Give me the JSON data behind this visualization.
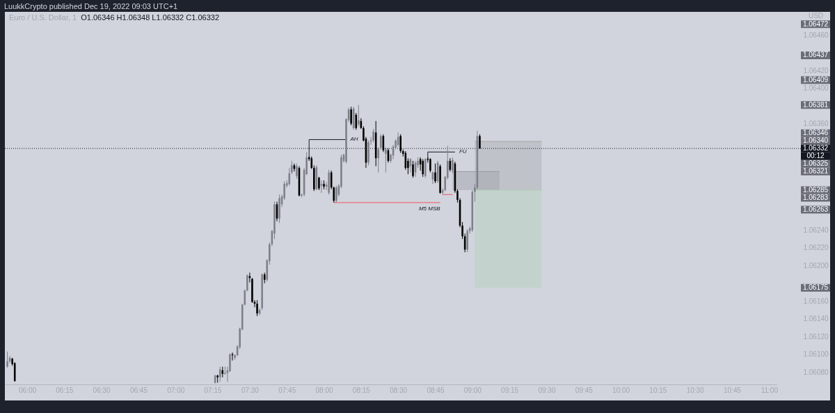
{
  "chart_data": {
    "type": "candlestick",
    "title": "Euro / U.S. Dollar, 1",
    "subtitle": "O1.06346 H1.06348 L1.06332 C1.06332",
    "ylabel": "USD",
    "xlim": [
      5.85,
      11.05
    ],
    "ylim": [
      1.06066,
      1.06486
    ],
    "xticks": [
      {
        "value": 6,
        "label": "06:00"
      },
      {
        "value": 6.25,
        "label": "06:15"
      },
      {
        "value": 6.5,
        "label": "06:30"
      },
      {
        "value": 6.75,
        "label": "06:45"
      },
      {
        "value": 7,
        "label": "07:00"
      },
      {
        "value": 7.25,
        "label": "07:15"
      },
      {
        "value": 7.5,
        "label": "07:30"
      },
      {
        "value": 7.75,
        "label": "07:45"
      },
      {
        "value": 8,
        "label": "08:00"
      },
      {
        "value": 8.25,
        "label": "08:15"
      },
      {
        "value": 8.5,
        "label": "08:30"
      },
      {
        "value": 8.75,
        "label": "08:45"
      },
      {
        "value": 9,
        "label": "09:00"
      },
      {
        "value": 9.25,
        "label": "09:15"
      },
      {
        "value": 9.5,
        "label": "09:30"
      },
      {
        "value": 9.75,
        "label": "09:45"
      },
      {
        "value": 10,
        "label": "10:00"
      },
      {
        "value": 10.25,
        "label": "10:15"
      },
      {
        "value": 10.5,
        "label": "10:30"
      },
      {
        "value": 10.75,
        "label": "10:45"
      },
      {
        "value": 11,
        "label": "11:00"
      }
    ],
    "yticks": [
      {
        "value": 1.0646,
        "label": "1.06460"
      },
      {
        "value": 1.0642,
        "label": "1.06420"
      },
      {
        "value": 1.064,
        "label": "1.06400"
      },
      {
        "value": 1.0636,
        "label": "1.06360"
      },
      {
        "value": 1.0624,
        "label": "1.06240"
      },
      {
        "value": 1.0622,
        "label": "1.06220"
      },
      {
        "value": 1.062,
        "label": "1.06200"
      },
      {
        "value": 1.0616,
        "label": "1.06160"
      },
      {
        "value": 1.0614,
        "label": "1.06140"
      },
      {
        "value": 1.0612,
        "label": "1.06120"
      },
      {
        "value": 1.061,
        "label": "1.06100"
      },
      {
        "value": 1.0608,
        "label": "1.06080"
      }
    ],
    "x": [
      5.8667,
      5.8833,
      5.9,
      5.9167,
      7.2667,
      7.2833,
      7.3,
      7.3167,
      7.3333,
      7.35,
      7.3667,
      7.3833,
      7.4,
      7.4167,
      7.4333,
      7.45,
      7.4667,
      7.4833,
      7.5,
      7.5167,
      7.5333,
      7.55,
      7.5667,
      7.5833,
      7.6,
      7.6167,
      7.6333,
      7.65,
      7.6667,
      7.6833,
      7.7,
      7.7167,
      7.7333,
      7.75,
      7.7667,
      7.7833,
      7.8,
      7.8167,
      7.8333,
      7.85,
      7.8667,
      7.8833,
      7.9,
      7.9167,
      7.9333,
      7.95,
      7.9667,
      7.9833,
      8,
      8.0167,
      8.0333,
      8.05,
      8.0667,
      8.0833,
      8.1,
      8.1167,
      8.1333,
      8.15,
      8.1667,
      8.1833,
      8.2,
      8.2167,
      8.2333,
      8.25,
      8.2667,
      8.2833,
      8.3,
      8.3167,
      8.3333,
      8.35,
      8.3667,
      8.3833,
      8.4,
      8.4167,
      8.4333,
      8.45,
      8.4667,
      8.4833,
      8.5,
      8.5167,
      8.5333,
      8.55,
      8.5667,
      8.5833,
      8.6,
      8.6167,
      8.6333,
      8.65,
      8.6667,
      8.6833,
      8.7,
      8.7167,
      8.7333,
      8.75,
      8.7667,
      8.7833,
      8.8,
      8.8167,
      8.8333,
      8.85,
      8.8667,
      8.8833,
      8.9,
      8.9167,
      8.9333,
      8.95,
      8.9667,
      8.9833,
      9,
      9.0167,
      9.0333,
      9.05
    ],
    "ohlc": [
      [
        1.06086,
        1.06103,
        1.06085,
        1.06092
      ],
      [
        1.06092,
        1.06098,
        1.0609,
        1.06096
      ],
      [
        1.06095,
        1.06096,
        1.06087,
        1.06089
      ],
      [
        1.0609,
        1.06091,
        1.06069,
        1.0607
      ],
      [
        1.06068,
        1.06077,
        1.06067,
        1.06076
      ],
      [
        1.06076,
        1.06077,
        1.06068,
        1.06074
      ],
      [
        1.06074,
        1.06086,
        1.06069,
        1.06083
      ],
      [
        1.06082,
        1.06086,
        1.06074,
        1.06078
      ],
      [
        1.06078,
        1.06086,
        1.06077,
        1.06079
      ],
      [
        1.06079,
        1.06086,
        1.06069,
        1.06082
      ],
      [
        1.06081,
        1.06101,
        1.0608,
        1.061
      ],
      [
        1.061,
        1.06102,
        1.06093,
        1.06099
      ],
      [
        1.06096,
        1.061,
        1.06094,
        1.06099
      ],
      [
        1.06099,
        1.0611,
        1.06098,
        1.06109
      ],
      [
        1.06108,
        1.0613,
        1.06106,
        1.06129
      ],
      [
        1.06128,
        1.06157,
        1.06127,
        1.06156
      ],
      [
        1.06156,
        1.06173,
        1.06155,
        1.06172
      ],
      [
        1.06172,
        1.0619,
        1.06171,
        1.06189
      ],
      [
        1.06188,
        1.06192,
        1.06181,
        1.06186
      ],
      [
        1.06185,
        1.06186,
        1.06158,
        1.06159
      ],
      [
        1.06159,
        1.06161,
        1.06153,
        1.06157
      ],
      [
        1.06157,
        1.06161,
        1.06143,
        1.06146
      ],
      [
        1.06146,
        1.06152,
        1.06144,
        1.0615
      ],
      [
        1.06152,
        1.06191,
        1.0615,
        1.0619
      ],
      [
        1.0619,
        1.06192,
        1.0618,
        1.06184
      ],
      [
        1.06184,
        1.06207,
        1.06182,
        1.06206
      ],
      [
        1.06205,
        1.06226,
        1.06201,
        1.06224
      ],
      [
        1.06224,
        1.0624,
        1.06222,
        1.06239
      ],
      [
        1.06236,
        1.06272,
        1.0623,
        1.06269
      ],
      [
        1.06269,
        1.06272,
        1.0625,
        1.06253
      ],
      [
        1.06253,
        1.0628,
        1.06248,
        1.06276
      ],
      [
        1.06269,
        1.0628,
        1.06266,
        1.06278
      ],
      [
        1.06276,
        1.06295,
        1.06274,
        1.06292
      ],
      [
        1.0629,
        1.06296,
        1.06288,
        1.06293
      ],
      [
        1.06292,
        1.0631,
        1.0629,
        1.06304
      ],
      [
        1.06305,
        1.06318,
        1.06303,
        1.06313
      ],
      [
        1.06313,
        1.06315,
        1.06306,
        1.06309
      ],
      [
        1.06301,
        1.06315,
        1.06298,
        1.06312
      ],
      [
        1.0631,
        1.06312,
        1.06278,
        1.06279
      ],
      [
        1.06279,
        1.06281,
        1.06277,
        1.0628
      ],
      [
        1.0628,
        1.0631,
        1.06278,
        1.06308
      ],
      [
        1.06303,
        1.06328,
        1.06302,
        1.06322
      ],
      [
        1.06322,
        1.06323,
        1.06318,
        1.0632
      ],
      [
        1.06321,
        1.06323,
        1.06309,
        1.0631
      ],
      [
        1.0631,
        1.06313,
        1.06284,
        1.06286
      ],
      [
        1.06286,
        1.06313,
        1.06285,
        1.06311
      ],
      [
        1.06299,
        1.063,
        1.06285,
        1.06287
      ],
      [
        1.0629,
        1.06296,
        1.06282,
        1.06292
      ],
      [
        1.06292,
        1.06296,
        1.06286,
        1.06289
      ],
      [
        1.06289,
        1.06294,
        1.06285,
        1.06291
      ],
      [
        1.06282,
        1.06308,
        1.0628,
        1.06305
      ],
      [
        1.06305,
        1.06307,
        1.06286,
        1.06288
      ],
      [
        1.06288,
        1.06289,
        1.06271,
        1.06273
      ],
      [
        1.06273,
        1.0629,
        1.06271,
        1.06288
      ],
      [
        1.0628,
        1.06292,
        1.06278,
        1.0629
      ],
      [
        1.06289,
        1.06325,
        1.06287,
        1.06322
      ],
      [
        1.06318,
        1.06326,
        1.06316,
        1.06325
      ],
      [
        1.06317,
        1.06366,
        1.06315,
        1.06365
      ],
      [
        1.06364,
        1.06378,
        1.06362,
        1.06376
      ],
      [
        1.06376,
        1.06379,
        1.06358,
        1.0636
      ],
      [
        1.06355,
        1.06379,
        1.06353,
        1.06377
      ],
      [
        1.0637,
        1.06372,
        1.06353,
        1.06355
      ],
      [
        1.06359,
        1.06381,
        1.06357,
        1.06364
      ],
      [
        1.06363,
        1.06366,
        1.06354,
        1.06355
      ],
      [
        1.06355,
        1.06357,
        1.0634,
        1.06341
      ],
      [
        1.06343,
        1.06345,
        1.0631,
        1.06316
      ],
      [
        1.06316,
        1.06341,
        1.06313,
        1.06339
      ],
      [
        1.0634,
        1.06345,
        1.06336,
        1.06341
      ],
      [
        1.06341,
        1.06354,
        1.06339,
        1.06351
      ],
      [
        1.0635,
        1.06363,
        1.06312,
        1.06321
      ],
      [
        1.06321,
        1.06333,
        1.06305,
        1.06331
      ],
      [
        1.06333,
        1.06348,
        1.06331,
        1.06346
      ],
      [
        1.06346,
        1.06348,
        1.06328,
        1.0633
      ],
      [
        1.06326,
        1.06333,
        1.06305,
        1.06331
      ],
      [
        1.0633,
        1.06332,
        1.06316,
        1.06318
      ],
      [
        1.06318,
        1.06326,
        1.06316,
        1.06325
      ],
      [
        1.06324,
        1.06336,
        1.0632,
        1.06334
      ],
      [
        1.06333,
        1.06342,
        1.06331,
        1.06341
      ],
      [
        1.06336,
        1.0635,
        1.06334,
        1.06345
      ],
      [
        1.06346,
        1.06348,
        1.06327,
        1.06329
      ],
      [
        1.06329,
        1.06331,
        1.06323,
        1.06326
      ],
      [
        1.06327,
        1.06329,
        1.06308,
        1.0631
      ],
      [
        1.06318,
        1.06321,
        1.06303,
        1.0631
      ],
      [
        1.06312,
        1.06321,
        1.06305,
        1.0632
      ],
      [
        1.06314,
        1.06318,
        1.06299,
        1.06301
      ],
      [
        1.06305,
        1.06318,
        1.063,
        1.06316
      ],
      [
        1.06313,
        1.06322,
        1.0631,
        1.06318
      ],
      [
        1.0632,
        1.06322,
        1.06307,
        1.06314
      ],
      [
        1.06318,
        1.0632,
        1.063,
        1.06303
      ],
      [
        1.06301,
        1.06321,
        1.06299,
        1.0632
      ],
      [
        1.0632,
        1.06322,
        1.06316,
        1.06319
      ],
      [
        1.0632,
        1.06321,
        1.06305,
        1.06307
      ],
      [
        1.06297,
        1.06306,
        1.06292,
        1.06305
      ],
      [
        1.06305,
        1.06315,
        1.06293,
        1.06295
      ],
      [
        1.06295,
        1.06318,
        1.06293,
        1.06316
      ],
      [
        1.06312,
        1.06314,
        1.06281,
        1.06282
      ],
      [
        1.06282,
        1.06287,
        1.0628,
        1.06285
      ],
      [
        1.06285,
        1.06301,
        1.06284,
        1.063
      ],
      [
        1.06299,
        1.06335,
        1.06297,
        1.06318
      ],
      [
        1.06318,
        1.06321,
        1.06306,
        1.06308
      ],
      [
        1.06307,
        1.06322,
        1.06304,
        1.06319
      ],
      [
        1.06315,
        1.06317,
        1.06282,
        1.06284
      ],
      [
        1.06284,
        1.06286,
        1.06271,
        1.06274
      ],
      [
        1.06274,
        1.06276,
        1.06243,
        1.06245
      ],
      [
        1.06245,
        1.06249,
        1.0623,
        1.06233
      ],
      [
        1.06233,
        1.06236,
        1.06215,
        1.06218
      ],
      [
        1.06218,
        1.06241,
        1.06215,
        1.06239
      ],
      [
        1.06239,
        1.06244,
        1.06236,
        1.06242
      ],
      [
        1.0624,
        1.06285,
        1.06238,
        1.06283
      ],
      [
        1.06283,
        1.06292,
        1.06272,
        1.06288
      ],
      [
        1.06288,
        1.06352,
        1.06286,
        1.06346
      ],
      [
        1.06346,
        1.06348,
        1.06332,
        1.06332
      ]
    ],
    "colors": [
      "#7e8089",
      "#7e8089",
      "#000000",
      "#000000",
      "#7e8089",
      "#000000",
      "#7e8089",
      "#000000",
      "#7e8089",
      "#7e8089",
      "#7e8089",
      "#000000",
      "#7e8089",
      "#7e8089",
      "#7e8089",
      "#7e8089",
      "#7e8089",
      "#7e8089",
      "#000000",
      "#000000",
      "#000000",
      "#000000",
      "#7e8089",
      "#7e8089",
      "#000000",
      "#7e8089",
      "#7e8089",
      "#7e8089",
      "#7e8089",
      "#000000",
      "#7e8089",
      "#7e8089",
      "#7e8089",
      "#7e8089",
      "#7e8089",
      "#7e8089",
      "#000000",
      "#7e8089",
      "#000000",
      "#7e8089",
      "#7e8089",
      "#7e8089",
      "#000000",
      "#000000",
      "#000000",
      "#7e8089",
      "#000000",
      "#7e8089",
      "#000000",
      "#7e8089",
      "#7e8089",
      "#000000",
      "#000000",
      "#7e8089",
      "#7e8089",
      "#7e8089",
      "#7e8089",
      "#7e8089",
      "#7e8089",
      "#000000",
      "#7e8089",
      "#000000",
      "#7e8089",
      "#000000",
      "#000000",
      "#000000",
      "#7e8089",
      "#7e8089",
      "#7e8089",
      "#000000",
      "#7e8089",
      "#7e8089",
      "#000000",
      "#7e8089",
      "#000000",
      "#7e8089",
      "#7e8089",
      "#7e8089",
      "#7e8089",
      "#000000",
      "#000000",
      "#000000",
      "#000000",
      "#7e8089",
      "#000000",
      "#7e8089",
      "#7e8089",
      "#000000",
      "#000000",
      "#7e8089",
      "#000000",
      "#000000",
      "#7e8089",
      "#000000",
      "#7e8089",
      "#000000",
      "#7e8089",
      "#7e8089",
      "#7e8089",
      "#000000",
      "#7e8089",
      "#000000",
      "#000000",
      "#000000",
      "#000000",
      "#000000",
      "#7e8089",
      "#7e8089",
      "#7e8089",
      "#7e8089",
      "#7e8089",
      "#000000"
    ],
    "series": [
      {
        "type": "line",
        "color": "#9598a0",
        "x": [
          8.8667,
          9.1833
        ],
        "values": [
          1.06306,
          1.06306
        ],
        "lower": [
          1.06285,
          1.06285
        ],
        "upper": [
          1.06306,
          1.06306
        ]
      },
      {
        "type": "line",
        "color": "#a4a7ac",
        "x": [
          9.0167,
          9.4667
        ],
        "values": [
          1.0634,
          1.0634
        ],
        "lower": [
          1.06285,
          1.06285
        ],
        "upper": [
          1.0634,
          1.0634
        ]
      },
      {
        "type": "line",
        "color": "#b0cfb6",
        "x": [
          9.0167,
          9.4667
        ],
        "values": [
          1.06285,
          1.06285
        ],
        "lower": [
          1.06175,
          1.06175
        ],
        "upper": [
          1.06285,
          1.06285
        ]
      },
      {
        "type": "line",
        "name": "AH",
        "color": "#131722",
        "x": [
          7.9,
          7.9,
          8.15
        ],
        "values": [
          1.0632,
          1.06342,
          1.06342
        ]
      },
      {
        "type": "line",
        "name": "M5 MSB",
        "color": "#f7525f",
        "x": [
          8.0667,
          8.7833
        ],
        "values": [
          1.06271,
          1.06271
        ]
      },
      {
        "type": "line",
        "name": "FU",
        "color": "#131722",
        "x": [
          8.7,
          8.7,
          8.8833
        ],
        "values": [
          1.06319,
          1.06328,
          1.06328
        ]
      },
      {
        "type": "line",
        "color": "#f7525f",
        "x": [
          8.8,
          8.8667
        ],
        "values": [
          1.0628,
          1.0628
        ]
      }
    ],
    "ref_lines": [
      {
        "axis": "y",
        "value": 1.06332,
        "label": "1.06332",
        "line_style": "dotted",
        "color": "#131722"
      }
    ],
    "annotations": [
      "LuukkCrypto published Dec 19, 2022 09:03 UTC+1",
      "00:12",
      "1.06472",
      "1.06437",
      "1.06409",
      "1.06381",
      "1.06346",
      "1.06340",
      "1.06325",
      "1.06321",
      "1.06285",
      "1.06283",
      "1.06263",
      "1.06175"
    ]
  }
}
